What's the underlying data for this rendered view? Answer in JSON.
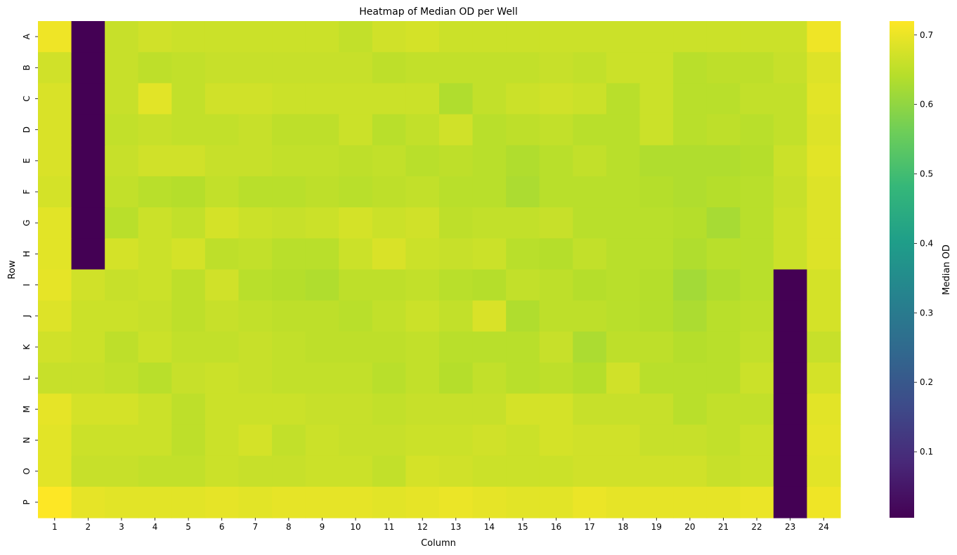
{
  "chart_data": {
    "type": "heatmap",
    "title": "Heatmap of Median OD per Well",
    "xlabel": "Column",
    "ylabel": "Row",
    "colorbar_label": "Median OD",
    "colormap": "viridis",
    "vmin": 0.005,
    "vmax": 0.72,
    "colorbar_ticks": [
      "0.1",
      "0.2",
      "0.3",
      "0.4",
      "0.5",
      "0.6",
      "0.7"
    ],
    "rows": [
      "A",
      "B",
      "C",
      "D",
      "E",
      "F",
      "G",
      "H",
      "I",
      "J",
      "K",
      "L",
      "M",
      "N",
      "O",
      "P"
    ],
    "columns": [
      "1",
      "2",
      "3",
      "4",
      "5",
      "6",
      "7",
      "8",
      "9",
      "10",
      "11",
      "12",
      "13",
      "14",
      "15",
      "16",
      "17",
      "18",
      "19",
      "20",
      "21",
      "22",
      "23",
      "24"
    ],
    "values": [
      [
        0.705,
        0.005,
        0.66,
        0.67,
        0.665,
        0.665,
        0.665,
        0.665,
        0.665,
        0.655,
        0.67,
        0.675,
        0.665,
        0.665,
        0.665,
        0.665,
        0.665,
        0.665,
        0.665,
        0.665,
        0.665,
        0.665,
        0.665,
        0.705
      ],
      [
        0.67,
        0.005,
        0.66,
        0.65,
        0.655,
        0.66,
        0.66,
        0.66,
        0.66,
        0.66,
        0.65,
        0.655,
        0.655,
        0.655,
        0.655,
        0.66,
        0.655,
        0.665,
        0.665,
        0.645,
        0.65,
        0.65,
        0.66,
        0.685
      ],
      [
        0.68,
        0.005,
        0.66,
        0.69,
        0.655,
        0.67,
        0.67,
        0.665,
        0.665,
        0.665,
        0.665,
        0.665,
        0.635,
        0.655,
        0.665,
        0.67,
        0.665,
        0.645,
        0.665,
        0.645,
        0.645,
        0.655,
        0.655,
        0.69
      ],
      [
        0.68,
        0.005,
        0.655,
        0.66,
        0.655,
        0.655,
        0.66,
        0.65,
        0.65,
        0.665,
        0.645,
        0.655,
        0.67,
        0.645,
        0.65,
        0.655,
        0.645,
        0.645,
        0.665,
        0.645,
        0.65,
        0.645,
        0.655,
        0.685
      ],
      [
        0.68,
        0.005,
        0.66,
        0.67,
        0.67,
        0.66,
        0.66,
        0.655,
        0.655,
        0.65,
        0.655,
        0.645,
        0.65,
        0.645,
        0.635,
        0.645,
        0.655,
        0.645,
        0.635,
        0.635,
        0.635,
        0.64,
        0.665,
        0.69
      ],
      [
        0.675,
        0.005,
        0.655,
        0.645,
        0.64,
        0.655,
        0.645,
        0.645,
        0.65,
        0.645,
        0.65,
        0.655,
        0.645,
        0.645,
        0.63,
        0.645,
        0.645,
        0.645,
        0.64,
        0.635,
        0.64,
        0.645,
        0.66,
        0.685
      ],
      [
        0.69,
        0.005,
        0.645,
        0.665,
        0.655,
        0.675,
        0.665,
        0.66,
        0.665,
        0.675,
        0.665,
        0.67,
        0.65,
        0.655,
        0.655,
        0.66,
        0.645,
        0.645,
        0.645,
        0.64,
        0.625,
        0.645,
        0.665,
        0.685
      ],
      [
        0.69,
        0.005,
        0.675,
        0.665,
        0.675,
        0.65,
        0.655,
        0.645,
        0.645,
        0.665,
        0.68,
        0.665,
        0.66,
        0.665,
        0.645,
        0.64,
        0.655,
        0.645,
        0.645,
        0.635,
        0.645,
        0.645,
        0.665,
        0.685
      ],
      [
        0.695,
        0.67,
        0.66,
        0.665,
        0.65,
        0.67,
        0.645,
        0.64,
        0.635,
        0.65,
        0.65,
        0.655,
        0.645,
        0.64,
        0.655,
        0.65,
        0.64,
        0.645,
        0.64,
        0.62,
        0.635,
        0.645,
        0.005,
        0.675
      ],
      [
        0.685,
        0.665,
        0.665,
        0.66,
        0.65,
        0.66,
        0.655,
        0.65,
        0.65,
        0.645,
        0.655,
        0.665,
        0.655,
        0.68,
        0.635,
        0.65,
        0.65,
        0.645,
        0.64,
        0.63,
        0.645,
        0.65,
        0.005,
        0.675
      ],
      [
        0.67,
        0.665,
        0.65,
        0.665,
        0.655,
        0.655,
        0.66,
        0.655,
        0.65,
        0.65,
        0.65,
        0.655,
        0.645,
        0.645,
        0.645,
        0.66,
        0.63,
        0.65,
        0.65,
        0.64,
        0.645,
        0.655,
        0.005,
        0.66
      ],
      [
        0.66,
        0.66,
        0.655,
        0.645,
        0.66,
        0.665,
        0.66,
        0.655,
        0.655,
        0.655,
        0.645,
        0.655,
        0.64,
        0.655,
        0.645,
        0.65,
        0.64,
        0.67,
        0.645,
        0.645,
        0.645,
        0.665,
        0.005,
        0.675
      ],
      [
        0.695,
        0.675,
        0.675,
        0.665,
        0.65,
        0.665,
        0.665,
        0.665,
        0.66,
        0.66,
        0.655,
        0.66,
        0.66,
        0.66,
        0.675,
        0.675,
        0.66,
        0.66,
        0.66,
        0.645,
        0.655,
        0.655,
        0.005,
        0.69
      ],
      [
        0.69,
        0.665,
        0.665,
        0.665,
        0.65,
        0.665,
        0.675,
        0.655,
        0.665,
        0.66,
        0.66,
        0.665,
        0.665,
        0.67,
        0.665,
        0.675,
        0.67,
        0.67,
        0.66,
        0.66,
        0.655,
        0.665,
        0.005,
        0.695
      ],
      [
        0.69,
        0.66,
        0.66,
        0.655,
        0.655,
        0.665,
        0.66,
        0.66,
        0.665,
        0.665,
        0.655,
        0.675,
        0.67,
        0.665,
        0.665,
        0.665,
        0.67,
        0.67,
        0.67,
        0.67,
        0.66,
        0.665,
        0.005,
        0.69
      ],
      [
        0.72,
        0.695,
        0.69,
        0.69,
        0.69,
        0.695,
        0.69,
        0.695,
        0.695,
        0.695,
        0.69,
        0.695,
        0.7,
        0.695,
        0.69,
        0.69,
        0.7,
        0.695,
        0.695,
        0.695,
        0.695,
        0.7,
        0.005,
        0.705
      ]
    ]
  }
}
